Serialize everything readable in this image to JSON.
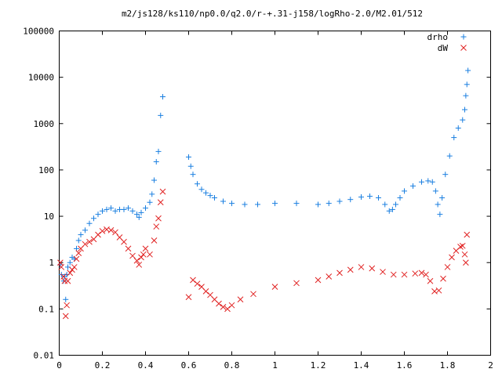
{
  "chart_data": {
    "type": "scatter",
    "title": "m2/js128/ks110/np0.0/q2.0/r-+.31-j158/logRho-2.0/M2.01/512",
    "xlabel": "",
    "ylabel": "",
    "xlim": [
      0,
      2
    ],
    "ylim": [
      0.01,
      100000
    ],
    "y_scale": "log",
    "grid": false,
    "legend_position": "top-right",
    "x_ticks": [
      "0",
      "0.2",
      "0.4",
      "0.6",
      "0.8",
      "1",
      "1.2",
      "1.4",
      "1.6",
      "1.8",
      "2"
    ],
    "y_ticks": [
      "0.01",
      "0.1",
      "1",
      "10",
      "100",
      "1000",
      "10000",
      "100000"
    ],
    "series": [
      {
        "name": "drho",
        "marker": "plus",
        "color": "#1a7fe0",
        "x": [
          0.005,
          0.01,
          0.02,
          0.025,
          0.03,
          0.035,
          0.04,
          0.05,
          0.06,
          0.07,
          0.08,
          0.09,
          0.1,
          0.12,
          0.14,
          0.16,
          0.18,
          0.2,
          0.22,
          0.24,
          0.26,
          0.28,
          0.3,
          0.32,
          0.34,
          0.36,
          0.37,
          0.38,
          0.4,
          0.42,
          0.43,
          0.44,
          0.45,
          0.46,
          0.47,
          0.48,
          0.6,
          0.61,
          0.62,
          0.64,
          0.66,
          0.68,
          0.7,
          0.72,
          0.76,
          0.8,
          0.86,
          0.92,
          1.0,
          1.1,
          1.2,
          1.25,
          1.3,
          1.35,
          1.4,
          1.44,
          1.48,
          1.51,
          1.53,
          1.545,
          1.56,
          1.58,
          1.6,
          1.64,
          1.68,
          1.71,
          1.73,
          1.745,
          1.755,
          1.765,
          1.775,
          1.79,
          1.81,
          1.83,
          1.85,
          1.87,
          1.88,
          1.885,
          1.89,
          1.895
        ],
        "y": [
          0.9,
          0.55,
          0.4,
          0.5,
          0.16,
          0.55,
          0.8,
          1.0,
          1.3,
          1.2,
          2.0,
          3.0,
          4.0,
          5.0,
          7.0,
          9.0,
          11,
          13,
          14,
          15,
          13,
          14,
          14,
          15,
          13,
          11,
          9.5,
          12,
          15,
          20,
          30,
          60,
          150,
          250,
          1500,
          3800,
          190,
          120,
          80,
          50,
          38,
          32,
          28,
          25,
          21,
          19,
          18,
          18,
          19,
          19,
          18,
          19,
          21,
          23,
          26,
          27,
          25,
          18,
          13,
          14,
          18,
          25,
          35,
          45,
          55,
          58,
          55,
          35,
          18,
          11,
          25,
          80,
          200,
          500,
          800,
          1200,
          2000,
          4000,
          7000,
          14000
        ]
      },
      {
        "name": "dW",
        "marker": "cross",
        "color": "#e02020",
        "x": [
          0.005,
          0.01,
          0.02,
          0.025,
          0.03,
          0.035,
          0.04,
          0.05,
          0.06,
          0.07,
          0.08,
          0.09,
          0.1,
          0.12,
          0.14,
          0.16,
          0.18,
          0.2,
          0.22,
          0.24,
          0.26,
          0.28,
          0.3,
          0.32,
          0.34,
          0.36,
          0.37,
          0.38,
          0.39,
          0.4,
          0.42,
          0.44,
          0.45,
          0.46,
          0.47,
          0.48,
          0.6,
          0.62,
          0.64,
          0.66,
          0.68,
          0.7,
          0.72,
          0.74,
          0.76,
          0.78,
          0.8,
          0.84,
          0.9,
          1.0,
          1.1,
          1.2,
          1.25,
          1.3,
          1.35,
          1.4,
          1.45,
          1.5,
          1.55,
          1.6,
          1.65,
          1.68,
          1.7,
          1.72,
          1.74,
          1.76,
          1.78,
          1.8,
          1.82,
          1.84,
          1.86,
          1.87,
          1.88,
          1.885,
          1.89
        ],
        "y": [
          1.0,
          0.8,
          0.5,
          0.4,
          0.07,
          0.12,
          0.4,
          0.6,
          0.7,
          0.8,
          1.2,
          1.6,
          2.0,
          2.5,
          2.8,
          3.2,
          4.0,
          4.8,
          5.2,
          5.0,
          4.5,
          3.5,
          2.8,
          2.0,
          1.4,
          1.1,
          0.9,
          1.3,
          1.5,
          2.0,
          1.5,
          3.0,
          6.0,
          9.0,
          20,
          34,
          0.18,
          0.42,
          0.35,
          0.3,
          0.24,
          0.2,
          0.16,
          0.13,
          0.11,
          0.1,
          0.12,
          0.16,
          0.21,
          0.3,
          0.36,
          0.42,
          0.5,
          0.6,
          0.7,
          0.8,
          0.75,
          0.63,
          0.55,
          0.55,
          0.58,
          0.6,
          0.55,
          0.4,
          0.24,
          0.25,
          0.45,
          0.8,
          1.3,
          1.8,
          2.2,
          2.3,
          1.5,
          1.0,
          4.0
        ]
      }
    ]
  }
}
